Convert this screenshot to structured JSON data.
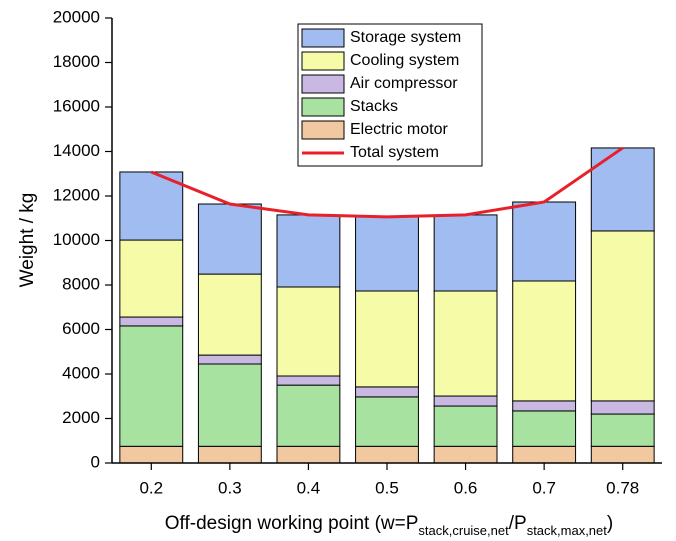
{
  "chart_data": {
    "type": "bar",
    "stacked": true,
    "categories": [
      "0.2",
      "0.3",
      "0.4",
      "0.5",
      "0.6",
      "0.7",
      "0.78"
    ],
    "series": [
      {
        "name": "Electric motor",
        "color": "#f2c8a0",
        "values": [
          750,
          750,
          750,
          750,
          750,
          750,
          750
        ]
      },
      {
        "name": "Stacks",
        "color": "#a8e2a0",
        "values": [
          5410,
          3700,
          2750,
          2220,
          1810,
          1590,
          1450
        ]
      },
      {
        "name": "Air compressor",
        "color": "#c8b8e2",
        "values": [
          400,
          400,
          410,
          450,
          450,
          450,
          590
        ]
      },
      {
        "name": "Cooling system",
        "color": "#f6fba8",
        "values": [
          3460,
          3640,
          4000,
          4310,
          4720,
          5390,
          7640
        ]
      },
      {
        "name": "Storage system",
        "color": "#a0bcf0",
        "values": [
          3060,
          3150,
          3240,
          3330,
          3420,
          3550,
          3730
        ]
      },
      {
        "name": "Total system",
        "type": "line",
        "color": "#e8202a",
        "values": [
          13080,
          11640,
          11150,
          11060,
          11150,
          11730,
          14160
        ]
      }
    ],
    "ylabel": "Weight / kg",
    "xlabel": [
      {
        "text": "Off-design working point (w=P"
      },
      {
        "text": "stack,cruise,net",
        "sub": true
      },
      {
        "text": "/P"
      },
      {
        "text": "stack,max,net",
        "sub": true
      },
      {
        "text": ")"
      }
    ],
    "ylim": [
      0,
      20000
    ],
    "yticks": [
      0,
      2000,
      4000,
      6000,
      8000,
      10000,
      12000,
      14000,
      16000,
      18000,
      20000
    ],
    "legend": "top center"
  }
}
